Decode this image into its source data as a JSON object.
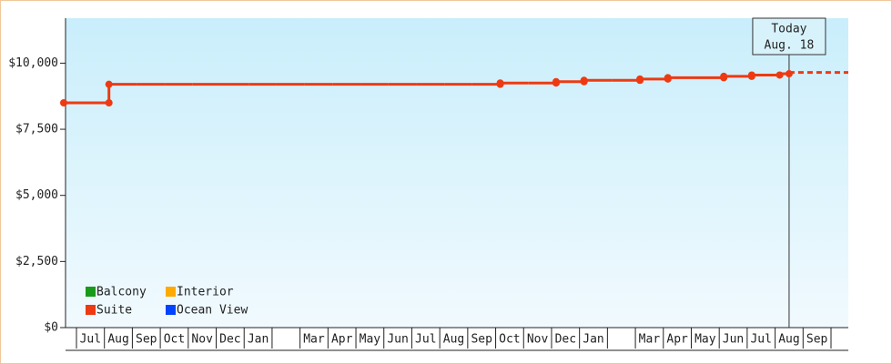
{
  "chart_data": {
    "type": "step-line",
    "annotation": {
      "label": "Today",
      "date": "Aug. 18"
    },
    "categories": [
      "Jul",
      "Aug",
      "Sep",
      "Oct",
      "Nov",
      "Dec",
      "Jan",
      null,
      "Mar",
      "Apr",
      "May",
      "Jun",
      "Jul",
      "Aug",
      "Sep",
      "Oct",
      "Nov",
      "Dec",
      "Jan",
      null,
      "Mar",
      "Apr",
      "May",
      "Jun",
      "Jul",
      "Aug",
      "Sep"
    ],
    "series": [
      {
        "name": "Balcony",
        "color": "#1a9a1a",
        "values": [
          null,
          null,
          null,
          null,
          null,
          null,
          null,
          null,
          null,
          null,
          null,
          null,
          null,
          null,
          null,
          null,
          null,
          null,
          null,
          null,
          null,
          null,
          null,
          null,
          null,
          null,
          null
        ]
      },
      {
        "name": "Interior",
        "color": "#ffaa00",
        "values": [
          null,
          null,
          null,
          null,
          null,
          null,
          null,
          null,
          null,
          null,
          null,
          null,
          null,
          null,
          null,
          null,
          null,
          null,
          null,
          null,
          null,
          null,
          null,
          null,
          null,
          null,
          null
        ]
      },
      {
        "name": "Suite",
        "color": "#ee3a12",
        "values": [
          8500,
          9200,
          9200,
          9200,
          9200,
          9200,
          9200,
          9200,
          9200,
          9200,
          9200,
          9200,
          9200,
          9200,
          9200,
          9250,
          9250,
          9300,
          9350,
          9350,
          9400,
          9450,
          9450,
          9500,
          9550,
          9600,
          9650
        ]
      },
      {
        "name": "Ocean View",
        "color": "#0044ff",
        "values": [
          null,
          null,
          null,
          null,
          null,
          null,
          null,
          null,
          null,
          null,
          null,
          null,
          null,
          null,
          null,
          null,
          null,
          null,
          null,
          null,
          null,
          null,
          null,
          null,
          null,
          null,
          null
        ]
      }
    ],
    "ylim": [
      0,
      11700
    ],
    "yticks": [
      {
        "value": 0,
        "label": "$0"
      },
      {
        "value": 2500,
        "label": "$2,500"
      },
      {
        "value": 5000,
        "label": "$5,000"
      },
      {
        "value": 7500,
        "label": "$7,500"
      },
      {
        "value": 10000,
        "label": "$10,000"
      }
    ]
  }
}
